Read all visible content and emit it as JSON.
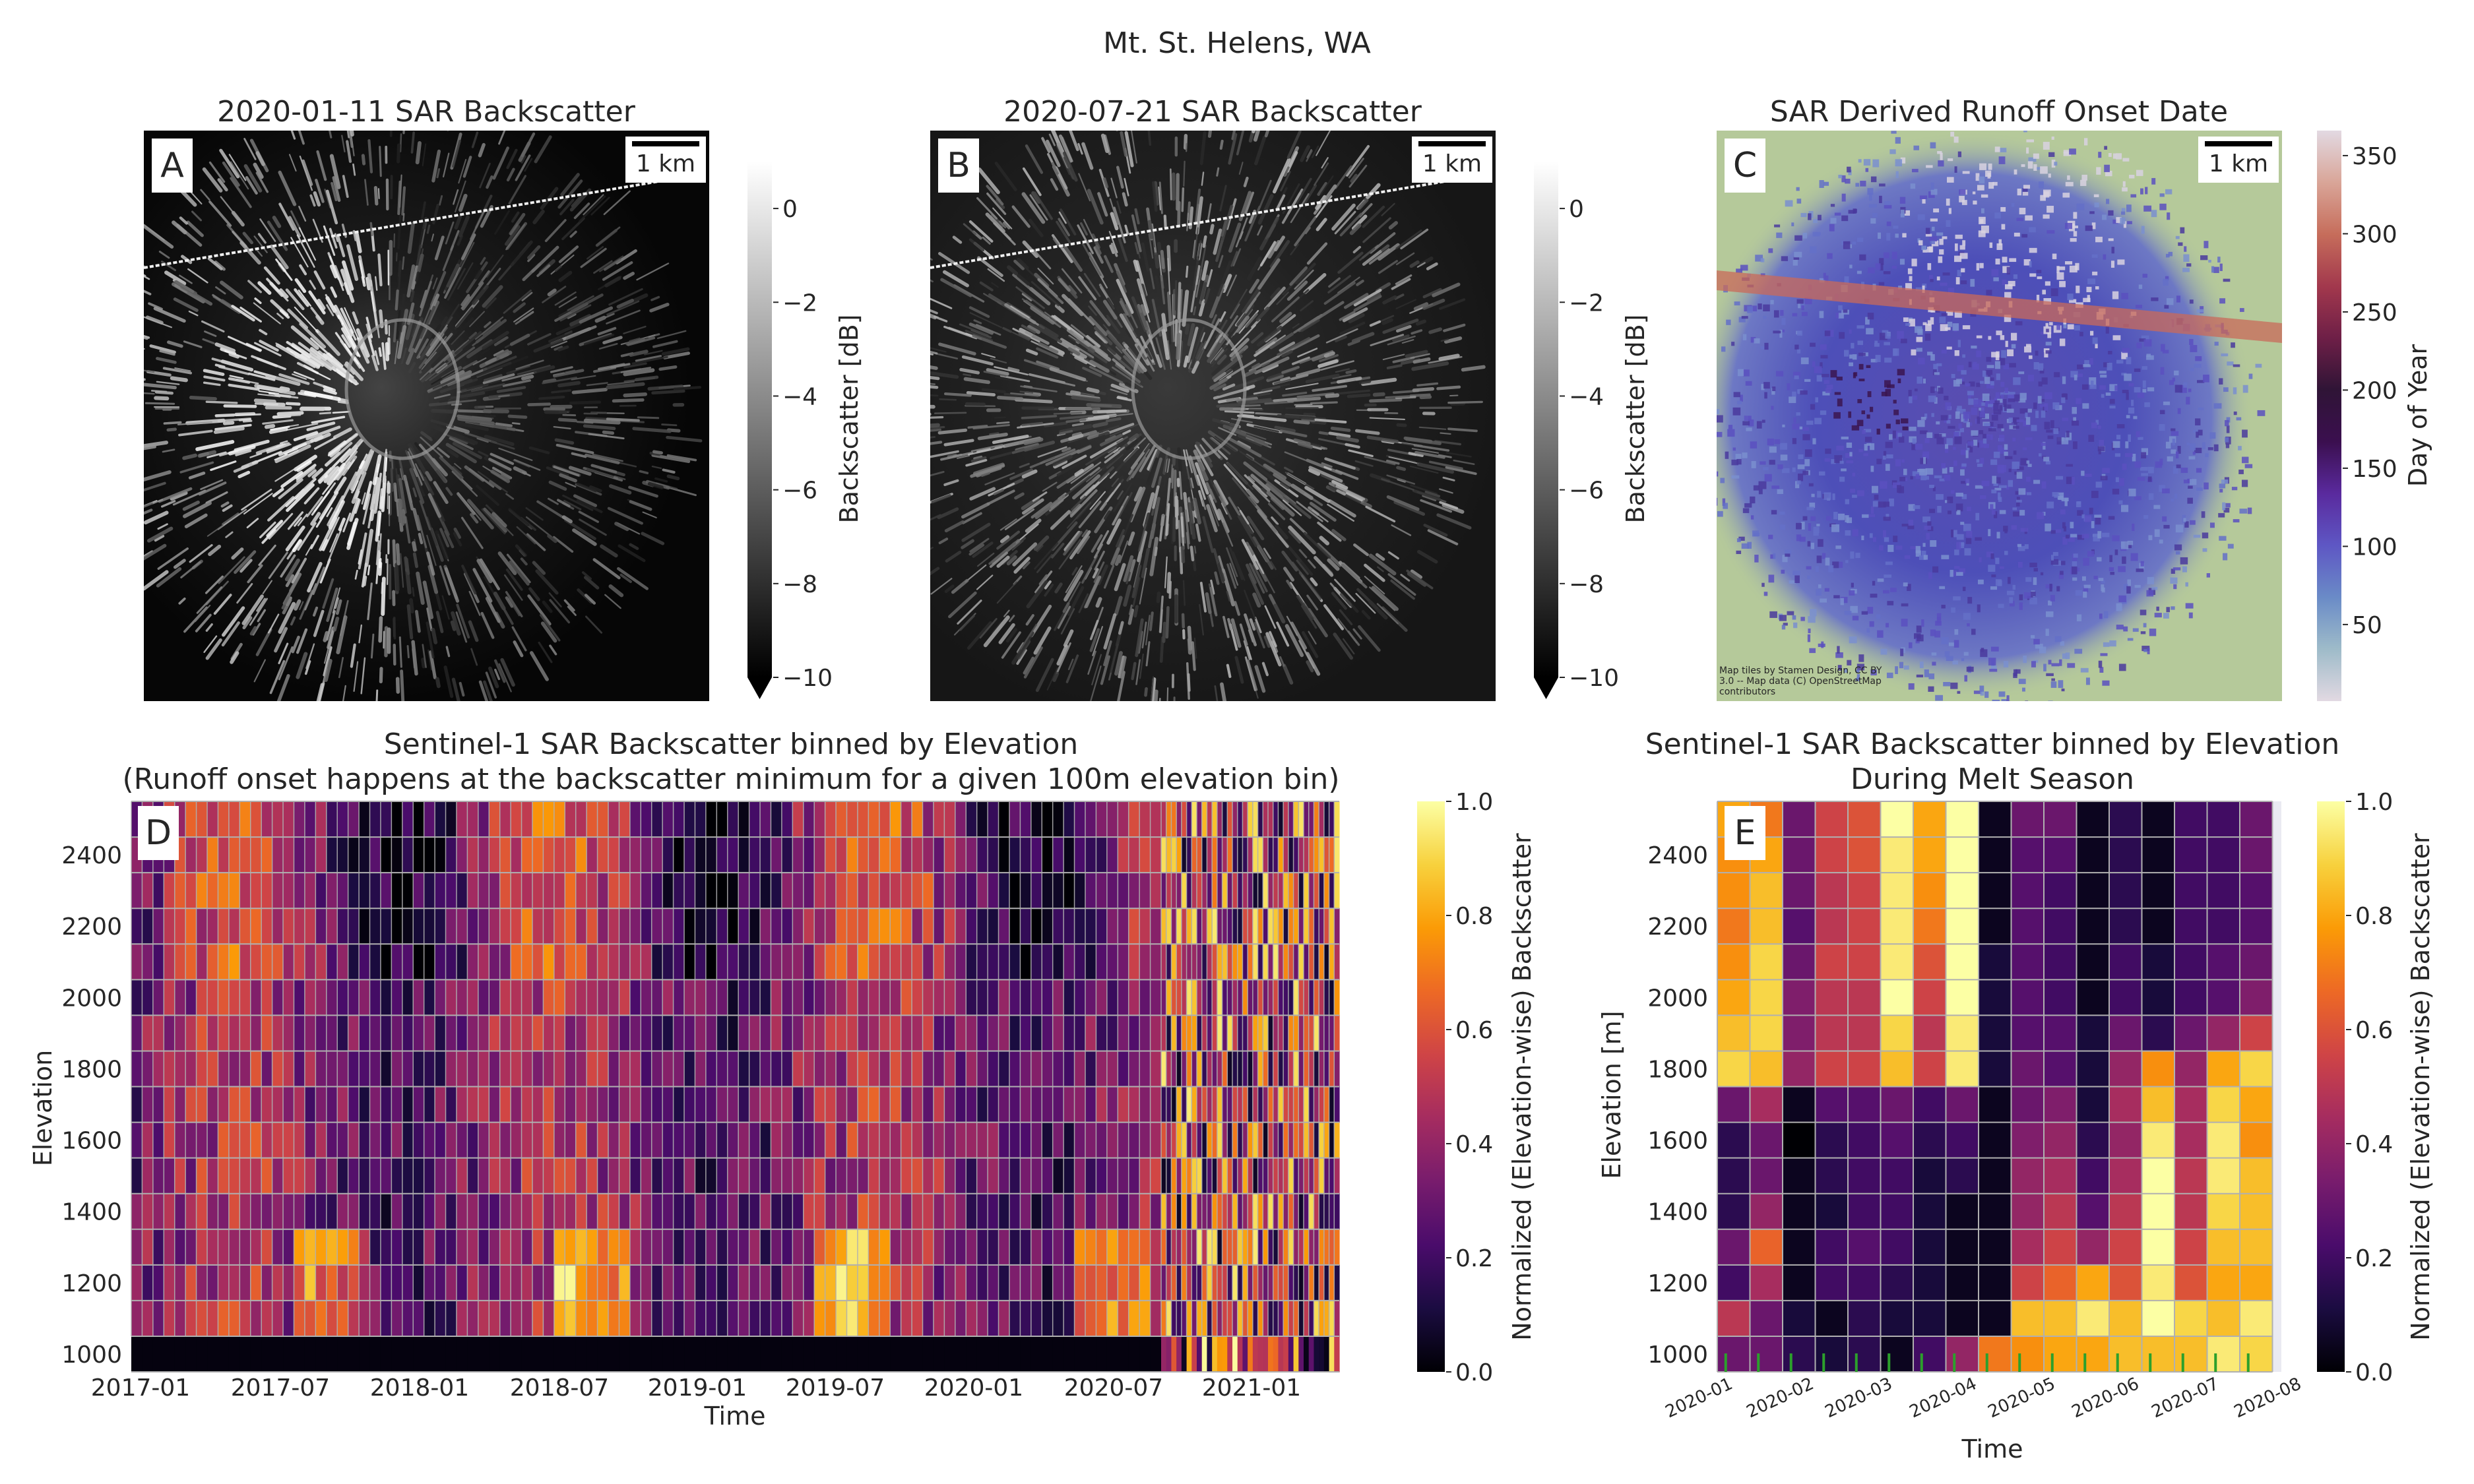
{
  "suptitle": "Mt. St. Helens, WA",
  "panels": {
    "A": {
      "letter": "A",
      "title": "2020-01-11 SAR Backscatter",
      "scalebar": "1 km"
    },
    "B": {
      "letter": "B",
      "title": "2020-07-21 SAR Backscatter",
      "scalebar": "1 km"
    },
    "C": {
      "letter": "C",
      "title": "SAR Derived Runoff Onset Date",
      "scalebar": "1 km",
      "attribution": [
        "Map tiles by Stamen Design, CC BY",
        "3.0 -- Map data (C) OpenStreetMap",
        "contributors"
      ]
    },
    "D": {
      "letter": "D",
      "title_lines": [
        "Sentinel-1 SAR Backscatter binned by Elevation",
        "(Runoff onset happens at the backscatter minimum for a given 100m elevation bin)"
      ]
    },
    "E": {
      "letter": "E",
      "title_lines": [
        "Sentinel-1 SAR Backscatter binned by Elevation",
        "During Melt Season"
      ]
    }
  },
  "colors": {
    "gray_cmap": [
      "#000000",
      "#ffffff"
    ],
    "inferno": [
      "#000004",
      "#1b0c41",
      "#4a0c6b",
      "#781c6d",
      "#a52c60",
      "#cf4446",
      "#ed6925",
      "#fb9b06",
      "#f7d13d",
      "#fcffa4"
    ],
    "twilight": [
      "#e2d9e2",
      "#9ebbc9",
      "#6a8bc7",
      "#5e57c4",
      "#5a2a9e",
      "#3b0f4f",
      "#2f1436",
      "#6e1f47",
      "#a2384d",
      "#c66d5b",
      "#d9a598",
      "#e2d9e2"
    ],
    "basemap_green": "#b5c99a",
    "tick_marks": "#2ca02c",
    "grid": "#b0b0b0"
  },
  "chart_data": [
    {
      "id": "A",
      "type": "heatmap",
      "title": "2020-01-11 SAR Backscatter",
      "colorbar_label": "Backscatter [dB]",
      "colorbar_ticks": [
        "0",
        "−2",
        "−4",
        "−6",
        "−8",
        "−10"
      ],
      "clim": [
        -10,
        1
      ]
    },
    {
      "id": "B",
      "type": "heatmap",
      "title": "2020-07-21 SAR Backscatter",
      "colorbar_label": "Backscatter [dB]",
      "colorbar_ticks": [
        "0",
        "−2",
        "−4",
        "−6",
        "−8",
        "−10"
      ],
      "clim": [
        -10,
        1
      ]
    },
    {
      "id": "C",
      "type": "heatmap",
      "title": "SAR Derived Runoff Onset Date",
      "colorbar_label": "Day of Year",
      "colorbar_ticks": [
        "350",
        "300",
        "250",
        "200",
        "150",
        "100",
        "50"
      ],
      "clim": [
        1,
        366
      ]
    },
    {
      "id": "D",
      "type": "heatmap",
      "title": "Sentinel-1 SAR Backscatter binned by Elevation",
      "subtitle": "(Runoff onset happens at the backscatter minimum for a given 100m elevation bin)",
      "xlabel": "Time",
      "ylabel": "Elevation",
      "x_ticks": [
        "2017-01",
        "2017-07",
        "2018-01",
        "2018-07",
        "2019-01",
        "2019-07",
        "2020-01",
        "2020-07",
        "2021-01"
      ],
      "y_ticks": [
        "2400",
        "2200",
        "2000",
        "1800",
        "1600",
        "1400",
        "1200",
        "1000"
      ],
      "colorbar_label": "Normalized (Elevation-wise) Backscatter",
      "colorbar_ticks": [
        "1.0",
        "0.8",
        "0.6",
        "0.4",
        "0.2",
        "0.0"
      ],
      "clim": [
        0,
        1
      ],
      "elevation_bins": [
        2500,
        2400,
        2300,
        2200,
        2100,
        2000,
        1900,
        1800,
        1700,
        1600,
        1500,
        1400,
        1300,
        1200,
        1100,
        1000
      ],
      "time_range": [
        "2016-12",
        "2021-04"
      ],
      "n_acquisitions": 130
    },
    {
      "id": "E",
      "type": "heatmap",
      "title": "Sentinel-1 SAR Backscatter binned by Elevation",
      "subtitle": "During Melt Season",
      "xlabel": "Time",
      "ylabel": "Elevation [m]",
      "x_ticks": [
        "2020-01",
        "2020-02",
        "2020-03",
        "2020-04",
        "2020-05",
        "2020-06",
        "2020-07",
        "2020-08"
      ],
      "y_ticks": [
        "2400",
        "2200",
        "2000",
        "1800",
        "1600",
        "1400",
        "1200",
        "1000"
      ],
      "colorbar_label": "Normalized (Elevation-wise) Backscatter",
      "colorbar_ticks": [
        "1.0",
        "0.8",
        "0.6",
        "0.4",
        "0.2",
        "0.0"
      ],
      "clim": [
        0,
        1
      ],
      "elevation_bins": [
        2500,
        2400,
        2300,
        2200,
        2100,
        2000,
        1900,
        1800,
        1700,
        1600,
        1500,
        1400,
        1300,
        1200,
        1100,
        1000
      ],
      "columns": 17,
      "values": [
        [
          0.8,
          0.7,
          0.3,
          0.55,
          0.6,
          1.0,
          0.8,
          1.0,
          0.05,
          0.3,
          0.3,
          0.05,
          0.15,
          0.05,
          0.2,
          0.2,
          0.3
        ],
        [
          0.75,
          0.8,
          0.3,
          0.55,
          0.6,
          0.95,
          0.8,
          1.0,
          0.05,
          0.25,
          0.25,
          0.05,
          0.15,
          0.05,
          0.2,
          0.2,
          0.3
        ],
        [
          0.75,
          0.85,
          0.3,
          0.5,
          0.55,
          0.95,
          0.75,
          1.0,
          0.05,
          0.25,
          0.2,
          0.05,
          0.15,
          0.05,
          0.2,
          0.2,
          0.25
        ],
        [
          0.7,
          0.85,
          0.25,
          0.5,
          0.55,
          0.95,
          0.7,
          1.0,
          0.05,
          0.25,
          0.2,
          0.05,
          0.15,
          0.05,
          0.2,
          0.2,
          0.25
        ],
        [
          0.75,
          0.9,
          0.3,
          0.55,
          0.55,
          0.95,
          0.6,
          1.0,
          0.1,
          0.25,
          0.2,
          0.05,
          0.2,
          0.1,
          0.2,
          0.25,
          0.3
        ],
        [
          0.8,
          0.9,
          0.35,
          0.5,
          0.5,
          1.0,
          0.55,
          1.0,
          0.1,
          0.25,
          0.2,
          0.05,
          0.2,
          0.1,
          0.2,
          0.25,
          0.35
        ],
        [
          0.85,
          0.9,
          0.35,
          0.5,
          0.5,
          0.9,
          0.5,
          0.95,
          0.1,
          0.25,
          0.25,
          0.1,
          0.3,
          0.15,
          0.3,
          0.4,
          0.55
        ],
        [
          0.9,
          0.85,
          0.4,
          0.55,
          0.55,
          0.85,
          0.55,
          0.95,
          0.1,
          0.3,
          0.25,
          0.1,
          0.4,
          0.75,
          0.4,
          0.8,
          0.9
        ],
        [
          0.3,
          0.45,
          0.05,
          0.25,
          0.25,
          0.3,
          0.2,
          0.3,
          0.05,
          0.3,
          0.35,
          0.1,
          0.45,
          0.85,
          0.45,
          0.9,
          0.8
        ],
        [
          0.15,
          0.3,
          0.0,
          0.15,
          0.2,
          0.25,
          0.15,
          0.2,
          0.05,
          0.35,
          0.4,
          0.15,
          0.4,
          0.95,
          0.45,
          0.95,
          0.75
        ],
        [
          0.15,
          0.3,
          0.05,
          0.15,
          0.2,
          0.2,
          0.1,
          0.15,
          0.05,
          0.4,
          0.45,
          0.2,
          0.45,
          1.0,
          0.5,
          0.95,
          0.85
        ],
        [
          0.15,
          0.4,
          0.05,
          0.1,
          0.2,
          0.2,
          0.1,
          0.05,
          0.05,
          0.4,
          0.5,
          0.25,
          0.5,
          1.0,
          0.5,
          0.9,
          0.85
        ],
        [
          0.3,
          0.65,
          0.05,
          0.2,
          0.25,
          0.2,
          0.1,
          0.05,
          0.05,
          0.45,
          0.55,
          0.4,
          0.55,
          1.0,
          0.55,
          0.85,
          0.85
        ],
        [
          0.2,
          0.45,
          0.05,
          0.2,
          0.2,
          0.15,
          0.1,
          0.05,
          0.05,
          0.55,
          0.65,
          0.8,
          0.6,
          0.95,
          0.6,
          0.8,
          0.8
        ],
        [
          0.5,
          0.3,
          0.1,
          0.05,
          0.15,
          0.1,
          0.1,
          0.05,
          0.05,
          0.85,
          0.85,
          0.95,
          0.85,
          1.0,
          0.9,
          0.85,
          0.95
        ],
        [
          0.3,
          0.3,
          0.15,
          0.1,
          0.15,
          0.05,
          0.2,
          0.4,
          0.7,
          0.75,
          0.8,
          0.8,
          0.85,
          0.85,
          0.85,
          0.95,
          0.9
        ]
      ]
    }
  ]
}
